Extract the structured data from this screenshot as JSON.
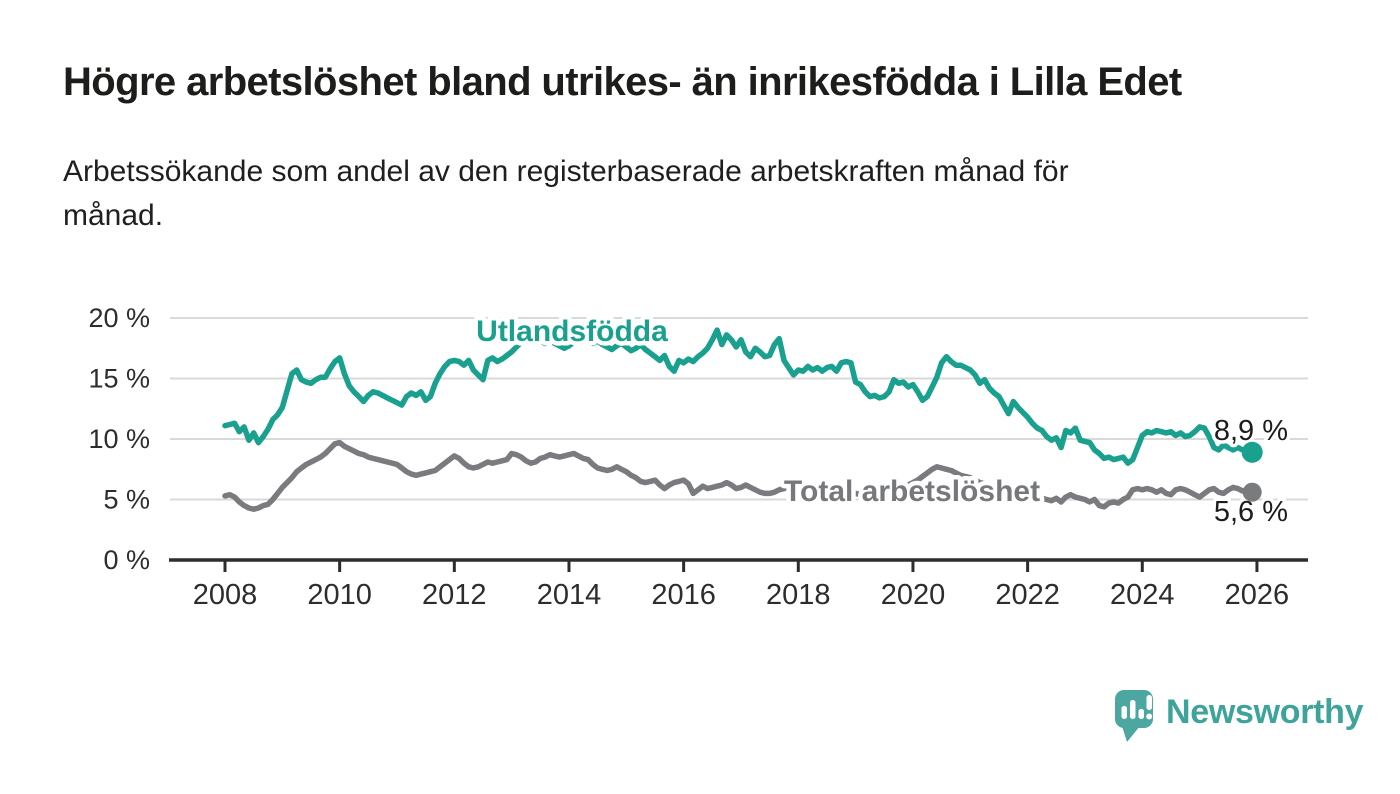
{
  "chart_data": {
    "type": "line",
    "title": "Högre arbetslöshet bland utrikes- än inrikesfödda i Lilla Edet",
    "subtitle_lines": [
      "Arbetssökande som andel av den registerbaserade arbetskraften månad för",
      "månad."
    ],
    "x_monthly_from": "2008-01",
    "x_monthly_to": "2025-12",
    "ylim": [
      0,
      21
    ],
    "grid": true,
    "x_ticks": [
      {
        "label": "2008",
        "year": 2008
      },
      {
        "label": "2010",
        "year": 2010
      },
      {
        "label": "2012",
        "year": 2012
      },
      {
        "label": "2014",
        "year": 2014
      },
      {
        "label": "2016",
        "year": 2016
      },
      {
        "label": "2018",
        "year": 2018
      },
      {
        "label": "2020",
        "year": 2020
      },
      {
        "label": "2022",
        "year": 2022
      },
      {
        "label": "2024",
        "year": 2024
      },
      {
        "label": "2026",
        "year": 2026
      }
    ],
    "y_ticks": [
      {
        "label": "0 %",
        "value": 0
      },
      {
        "label": "5 %",
        "value": 5
      },
      {
        "label": "10 %",
        "value": 10
      },
      {
        "label": "15 %",
        "value": 15
      },
      {
        "label": "20 %",
        "value": 20
      }
    ],
    "series": [
      {
        "name": "Utlandsfödda",
        "color": "#19a08f",
        "end_label": "8,9 %",
        "end_value": 8.9,
        "values": [
          11.1,
          11.2,
          11.3,
          10.6,
          11.0,
          9.9,
          10.5,
          9.7,
          10.2,
          10.8,
          11.6,
          12.0,
          12.6,
          14.0,
          15.4,
          15.7,
          14.9,
          14.7,
          14.6,
          14.9,
          15.1,
          15.1,
          15.8,
          16.4,
          16.7,
          15.4,
          14.4,
          13.9,
          13.5,
          13.1,
          13.6,
          13.9,
          13.8,
          13.6,
          13.4,
          13.2,
          13.0,
          12.8,
          13.5,
          13.8,
          13.6,
          13.9,
          13.2,
          13.5,
          14.6,
          15.4,
          16.0,
          16.4,
          16.5,
          16.4,
          16.1,
          16.5,
          15.7,
          15.3,
          14.9,
          16.5,
          16.7,
          16.4,
          16.6,
          16.9,
          17.2,
          17.6,
          18.0,
          18.3,
          18.6,
          18.4,
          18.1,
          17.9,
          18.2,
          17.9,
          17.7,
          17.5,
          17.7,
          18.0,
          18.3,
          18.5,
          18.2,
          17.9,
          18.1,
          17.8,
          17.6,
          17.4,
          17.7,
          17.9,
          17.6,
          17.3,
          17.5,
          17.8,
          17.4,
          17.1,
          16.8,
          16.5,
          16.9,
          16.0,
          15.6,
          16.5,
          16.3,
          16.6,
          16.4,
          16.8,
          17.1,
          17.5,
          18.2,
          19.0,
          17.8,
          18.6,
          18.2,
          17.6,
          18.2,
          17.2,
          16.8,
          17.5,
          17.2,
          16.8,
          16.9,
          17.8,
          18.3,
          16.5,
          15.9,
          15.3,
          15.7,
          15.6,
          16.0,
          15.7,
          15.9,
          15.6,
          15.9,
          16.0,
          15.6,
          16.3,
          16.4,
          16.3,
          14.7,
          14.5,
          13.9,
          13.5,
          13.6,
          13.4,
          13.5,
          13.9,
          14.9,
          14.6,
          14.7,
          14.3,
          14.5,
          13.9,
          13.2,
          13.5,
          14.3,
          15.1,
          16.3,
          16.8,
          16.4,
          16.1,
          16.1,
          15.9,
          15.7,
          15.3,
          14.6,
          14.9,
          14.2,
          13.8,
          13.5,
          12.8,
          12.1,
          13.1,
          12.6,
          12.2,
          11.8,
          11.3,
          10.9,
          10.7,
          10.2,
          9.9,
          10.1,
          9.3,
          10.7,
          10.5,
          10.9,
          9.9,
          9.8,
          9.7,
          9.1,
          8.8,
          8.4,
          8.5,
          8.3,
          8.4,
          8.5,
          8.0,
          8.3,
          9.3,
          10.3,
          10.6,
          10.5,
          10.7,
          10.6,
          10.5,
          10.6,
          10.3,
          10.5,
          10.2,
          10.3,
          10.6,
          11.0,
          10.9,
          10.2,
          9.3,
          9.1,
          9.5,
          9.3,
          9.1,
          9.3,
          9.1,
          9.0,
          8.9
        ]
      },
      {
        "name": "Total arbetslöshet",
        "color": "#7a7b7e",
        "end_label": "5,6 %",
        "end_value": 5.6,
        "values": [
          5.3,
          5.4,
          5.2,
          4.8,
          4.5,
          4.3,
          4.2,
          4.3,
          4.5,
          4.6,
          5.0,
          5.5,
          6.0,
          6.4,
          6.8,
          7.3,
          7.6,
          7.9,
          8.1,
          8.3,
          8.5,
          8.8,
          9.2,
          9.6,
          9.7,
          9.4,
          9.2,
          9.0,
          8.8,
          8.7,
          8.5,
          8.4,
          8.3,
          8.2,
          8.1,
          8.0,
          7.9,
          7.6,
          7.3,
          7.1,
          7.0,
          7.1,
          7.2,
          7.3,
          7.4,
          7.7,
          8.0,
          8.3,
          8.6,
          8.4,
          8.0,
          7.7,
          7.6,
          7.7,
          7.9,
          8.1,
          8.0,
          8.1,
          8.2,
          8.3,
          8.8,
          8.7,
          8.5,
          8.2,
          8.0,
          8.1,
          8.4,
          8.5,
          8.7,
          8.6,
          8.5,
          8.6,
          8.7,
          8.8,
          8.6,
          8.4,
          8.3,
          7.9,
          7.6,
          7.5,
          7.4,
          7.5,
          7.7,
          7.5,
          7.3,
          7.0,
          6.8,
          6.5,
          6.4,
          6.5,
          6.6,
          6.2,
          5.9,
          6.2,
          6.4,
          6.5,
          6.6,
          6.3,
          5.5,
          5.8,
          6.1,
          5.9,
          6.0,
          6.1,
          6.2,
          6.4,
          6.2,
          5.9,
          6.0,
          6.2,
          6.0,
          5.8,
          5.6,
          5.5,
          5.5,
          5.6,
          5.8,
          5.9,
          6.0,
          6.1,
          6.2,
          6.3,
          6.1,
          6.0,
          5.9,
          5.8,
          5.7,
          5.8,
          5.9,
          5.8,
          5.7,
          5.6,
          5.5,
          5.4,
          5.3,
          5.4,
          5.5,
          5.4,
          5.5,
          5.6,
          5.7,
          5.8,
          6.0,
          6.2,
          6.4,
          6.6,
          6.9,
          7.2,
          7.5,
          7.7,
          7.6,
          7.5,
          7.4,
          7.2,
          7.0,
          6.9,
          6.8,
          6.6,
          6.4,
          6.3,
          6.2,
          6.0,
          5.9,
          5.8,
          5.7,
          5.6,
          5.4,
          5.3,
          5.3,
          5.2,
          5.1,
          5.1,
          5.0,
          4.9,
          5.1,
          4.8,
          5.2,
          5.4,
          5.2,
          5.1,
          5.0,
          4.8,
          5.0,
          4.5,
          4.4,
          4.7,
          4.8,
          4.7,
          5.0,
          5.2,
          5.8,
          5.9,
          5.8,
          5.9,
          5.8,
          5.6,
          5.8,
          5.5,
          5.4,
          5.8,
          5.9,
          5.8,
          5.6,
          5.4,
          5.2,
          5.5,
          5.8,
          5.9,
          5.6,
          5.5,
          5.8,
          6.0,
          5.9,
          5.7,
          5.8,
          5.6
        ]
      }
    ],
    "colors": {
      "grid": "#d9d9d9",
      "axis": "#2d2d2d",
      "text": "#1d1d1b",
      "brand_teal": "#4ba7a0",
      "brand_text": "#3ea49b"
    }
  },
  "footer": {
    "brand": "Newsworthy"
  }
}
